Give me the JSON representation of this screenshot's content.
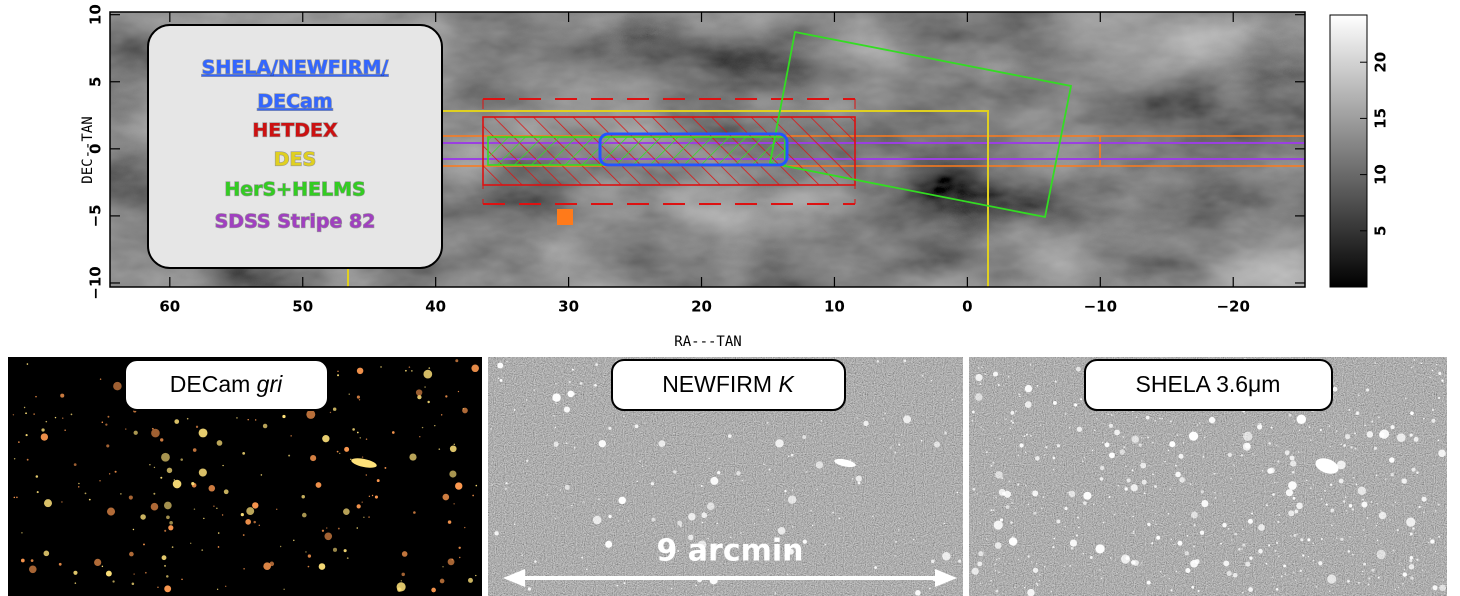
{
  "chart_data": {
    "type": "heatmap",
    "xlabel": "RA---TAN",
    "ylabel": "DEC--TAN",
    "xlim": [
      64.5,
      -25.4
    ],
    "ylim": [
      -10.3,
      10.2
    ],
    "xticks": [
      60,
      50,
      40,
      30,
      20,
      10,
      0,
      {
        "value": -10,
        "label": "−10"
      },
      {
        "value": -20,
        "label": "−20"
      }
    ],
    "yticks": [
      {
        "value": -10,
        "label": "−10"
      },
      {
        "value": -5,
        "label": "−5"
      },
      0,
      5,
      10
    ],
    "colorbar": {
      "lim": [
        0,
        24.2
      ],
      "ticks": [
        5,
        10,
        15,
        20
      ]
    },
    "legend": [
      {
        "label": "SHELA/NEWFIRM/",
        "color": "#3366ff"
      },
      {
        "label": "DECam",
        "color": "#3366ff"
      },
      {
        "label": "HETDEX",
        "color": "#cc1111"
      },
      {
        "label": "DES",
        "color": "#e0d020"
      },
      {
        "label": "HerS+HELMS",
        "color": "#33cc22"
      },
      {
        "label": "SDSS Stripe 82",
        "color": "#a040c0"
      }
    ]
  },
  "panels": [
    {
      "label": "DECam",
      "label_italic": "gri"
    },
    {
      "label": "NEWFIRM",
      "label_italic": "K"
    },
    {
      "label": "SHELA 3.6μm"
    }
  ],
  "scale_bar": {
    "label": "9 arcmin"
  }
}
